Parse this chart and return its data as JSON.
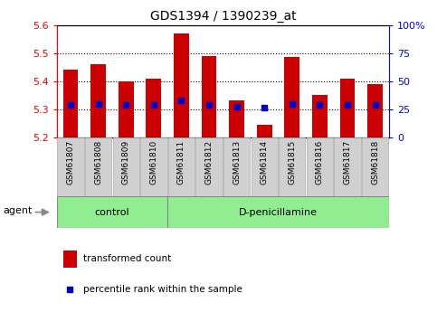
{
  "title": "GDS1394 / 1390239_at",
  "samples": [
    "GSM61807",
    "GSM61808",
    "GSM61809",
    "GSM61810",
    "GSM61811",
    "GSM61812",
    "GSM61813",
    "GSM61814",
    "GSM61815",
    "GSM61816",
    "GSM61817",
    "GSM61818"
  ],
  "transformed_count": [
    5.44,
    5.46,
    5.4,
    5.41,
    5.57,
    5.49,
    5.33,
    5.245,
    5.485,
    5.35,
    5.41,
    5.39
  ],
  "percentile_rank": [
    5.315,
    5.32,
    5.315,
    5.315,
    5.33,
    5.315,
    5.31,
    5.305,
    5.32,
    5.315,
    5.315,
    5.315
  ],
  "bar_color": "#cc0000",
  "percentile_color": "#0000cc",
  "ylim_left": [
    5.2,
    5.6
  ],
  "ylim_right": [
    0,
    100
  ],
  "yticks_left": [
    5.2,
    5.3,
    5.4,
    5.5,
    5.6
  ],
  "yticks_right": [
    0,
    25,
    50,
    75,
    100
  ],
  "ytick_labels_right": [
    "0",
    "25",
    "50",
    "75",
    "100%"
  ],
  "hlines": [
    5.3,
    5.4,
    5.5
  ],
  "n_control": 4,
  "n_treatment": 8,
  "control_label": "control",
  "treatment_label": "D-penicillamine",
  "agent_label": "agent",
  "bar_width": 0.55,
  "tick_bg_color": "#d0d0d0",
  "group_bg_color": "#90ee90",
  "legend_items": [
    "transformed count",
    "percentile rank within the sample"
  ],
  "legend_colors": [
    "#cc0000",
    "#0000cc"
  ]
}
